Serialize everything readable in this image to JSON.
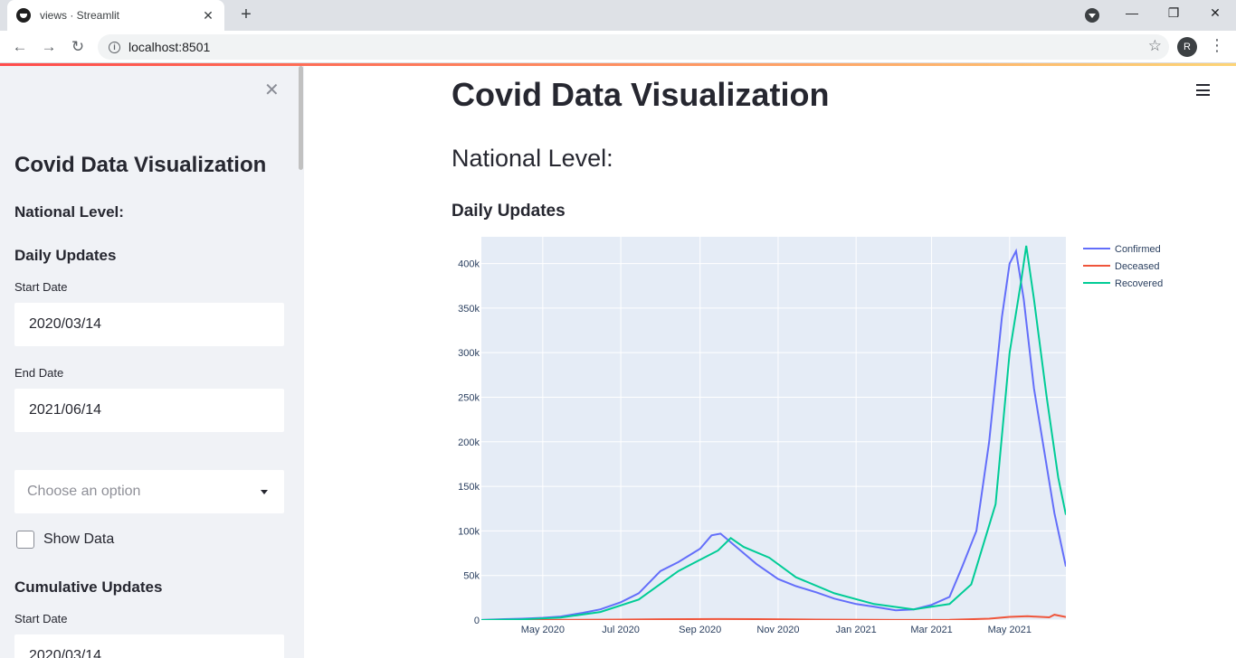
{
  "browser": {
    "tab_title": "views · Streamlit",
    "url": "localhost:8501",
    "avatar_letter": "R"
  },
  "sidebar": {
    "title": "Covid Data Visualization",
    "national_heading": "National Level:",
    "daily_heading": "Daily Updates",
    "start_label": "Start Date",
    "start_value": "2020/03/14",
    "end_label": "End Date",
    "end_value": "2021/06/14",
    "select_placeholder": "Choose an option",
    "show_data_label": "Show Data",
    "cumulative_heading": "Cumulative Updates",
    "cum_start_label": "Start Date",
    "cum_start_value": "2020/03/14"
  },
  "main": {
    "title": "Covid Data Visualization",
    "subtitle": "National Level:",
    "section": "Daily Updates"
  },
  "chart_data": {
    "type": "line",
    "ylim": [
      0,
      430000
    ],
    "yticks": [
      {
        "v": 0,
        "label": "0"
      },
      {
        "v": 50000,
        "label": "50k"
      },
      {
        "v": 100000,
        "label": "100k"
      },
      {
        "v": 150000,
        "label": "150k"
      },
      {
        "v": 200000,
        "label": "200k"
      },
      {
        "v": 250000,
        "label": "250k"
      },
      {
        "v": 300000,
        "label": "300k"
      },
      {
        "v": 350000,
        "label": "350k"
      },
      {
        "v": 400000,
        "label": "400k"
      }
    ],
    "xlim": [
      "2020-03-14",
      "2021-06-14"
    ],
    "xticks": [
      {
        "d": "2020-05-01",
        "label": "May 2020"
      },
      {
        "d": "2020-07-01",
        "label": "Jul 2020"
      },
      {
        "d": "2020-09-01",
        "label": "Sep 2020"
      },
      {
        "d": "2020-11-01",
        "label": "Nov 2020"
      },
      {
        "d": "2021-01-01",
        "label": "Jan 2021"
      },
      {
        "d": "2021-03-01",
        "label": "Mar 2021"
      },
      {
        "d": "2021-05-01",
        "label": "May 2021"
      }
    ],
    "grid": true,
    "legend_position": "top-right",
    "series": [
      {
        "name": "Confirmed",
        "color": "#636efa",
        "points": [
          [
            "2020-03-14",
            100
          ],
          [
            "2020-04-01",
            1000
          ],
          [
            "2020-04-15",
            1500
          ],
          [
            "2020-05-01",
            2500
          ],
          [
            "2020-05-15",
            4000
          ],
          [
            "2020-06-01",
            8000
          ],
          [
            "2020-06-15",
            12000
          ],
          [
            "2020-07-01",
            20000
          ],
          [
            "2020-07-15",
            30000
          ],
          [
            "2020-08-01",
            55000
          ],
          [
            "2020-08-15",
            65000
          ],
          [
            "2020-09-01",
            80000
          ],
          [
            "2020-09-10",
            95000
          ],
          [
            "2020-09-17",
            97000
          ],
          [
            "2020-10-01",
            80000
          ],
          [
            "2020-10-15",
            63000
          ],
          [
            "2020-11-01",
            46000
          ],
          [
            "2020-11-15",
            38000
          ],
          [
            "2020-12-01",
            31000
          ],
          [
            "2020-12-15",
            24000
          ],
          [
            "2021-01-01",
            18000
          ],
          [
            "2021-01-15",
            15000
          ],
          [
            "2021-02-01",
            11000
          ],
          [
            "2021-02-15",
            12000
          ],
          [
            "2021-03-01",
            17000
          ],
          [
            "2021-03-15",
            26000
          ],
          [
            "2021-03-25",
            60000
          ],
          [
            "2021-04-05",
            100000
          ],
          [
            "2021-04-15",
            200000
          ],
          [
            "2021-04-25",
            340000
          ],
          [
            "2021-05-01",
            400000
          ],
          [
            "2021-05-06",
            414000
          ],
          [
            "2021-05-12",
            360000
          ],
          [
            "2021-05-20",
            260000
          ],
          [
            "2021-05-28",
            190000
          ],
          [
            "2021-06-05",
            120000
          ],
          [
            "2021-06-14",
            60000
          ]
        ]
      },
      {
        "name": "Deceased",
        "color": "#ef553b",
        "points": [
          [
            "2020-03-14",
            0
          ],
          [
            "2020-05-01",
            100
          ],
          [
            "2020-07-01",
            500
          ],
          [
            "2020-08-01",
            900
          ],
          [
            "2020-09-15",
            1150
          ],
          [
            "2020-10-15",
            1000
          ],
          [
            "2020-12-01",
            500
          ],
          [
            "2021-02-01",
            100
          ],
          [
            "2021-03-15",
            250
          ],
          [
            "2021-04-15",
            1500
          ],
          [
            "2021-05-01",
            3500
          ],
          [
            "2021-05-15",
            4300
          ],
          [
            "2021-06-01",
            3000
          ],
          [
            "2021-06-05",
            6000
          ],
          [
            "2021-06-14",
            3400
          ]
        ]
      },
      {
        "name": "Recovered",
        "color": "#00cc96",
        "points": [
          [
            "2020-03-14",
            0
          ],
          [
            "2020-04-15",
            800
          ],
          [
            "2020-05-15",
            2800
          ],
          [
            "2020-06-15",
            9000
          ],
          [
            "2020-07-15",
            23000
          ],
          [
            "2020-08-15",
            55000
          ],
          [
            "2020-09-15",
            78000
          ],
          [
            "2020-09-25",
            92000
          ],
          [
            "2020-10-05",
            82000
          ],
          [
            "2020-10-25",
            70000
          ],
          [
            "2020-11-15",
            48000
          ],
          [
            "2020-12-15",
            30000
          ],
          [
            "2021-01-15",
            18000
          ],
          [
            "2021-02-15",
            12000
          ],
          [
            "2021-03-15",
            18000
          ],
          [
            "2021-04-01",
            40000
          ],
          [
            "2021-04-20",
            130000
          ],
          [
            "2021-05-01",
            300000
          ],
          [
            "2021-05-10",
            380000
          ],
          [
            "2021-05-14",
            420000
          ],
          [
            "2021-05-20",
            360000
          ],
          [
            "2021-05-30",
            250000
          ],
          [
            "2021-06-08",
            160000
          ],
          [
            "2021-06-14",
            118000
          ]
        ]
      }
    ]
  }
}
